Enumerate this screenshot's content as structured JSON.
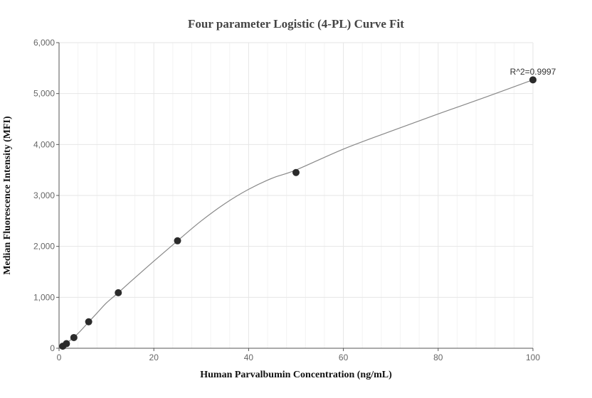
{
  "chart_data": {
    "type": "scatter",
    "title": "Four parameter Logistic (4-PL) Curve Fit",
    "xlabel": "Human Parvalbumin Concentration (ng/mL)",
    "ylabel": "Median Fluorescence Intensity (MFI)",
    "xlim": [
      0,
      100
    ],
    "ylim": [
      0,
      6000
    ],
    "x_ticks": [
      0,
      20,
      40,
      60,
      80,
      100
    ],
    "y_ticks": [
      0,
      1000,
      2000,
      3000,
      4000,
      5000,
      6000
    ],
    "x_tick_labels": [
      "0",
      "20",
      "40",
      "60",
      "80",
      "100"
    ],
    "y_tick_labels": [
      "0",
      "1,000",
      "2,000",
      "3,000",
      "4,000",
      "5,000",
      "6,000"
    ],
    "grid": true,
    "points": [
      {
        "x": 0.78,
        "y": 40
      },
      {
        "x": 1.56,
        "y": 90
      },
      {
        "x": 3.125,
        "y": 210
      },
      {
        "x": 6.25,
        "y": 520
      },
      {
        "x": 12.5,
        "y": 1090
      },
      {
        "x": 25,
        "y": 2110
      },
      {
        "x": 50,
        "y": 3450
      },
      {
        "x": 100,
        "y": 5270
      }
    ],
    "fit_curve": {
      "x": [
        0,
        1,
        2,
        4,
        6,
        8,
        10,
        12.5,
        15,
        20,
        25,
        30,
        35,
        40,
        45,
        50,
        60,
        70,
        80,
        90,
        100
      ],
      "y": [
        0,
        60,
        130,
        290,
        490,
        690,
        890,
        1090,
        1300,
        1710,
        2110,
        2500,
        2840,
        3120,
        3340,
        3500,
        3910,
        4260,
        4600,
        4930,
        5270
      ]
    },
    "annotation": "R^2=0.9997"
  }
}
